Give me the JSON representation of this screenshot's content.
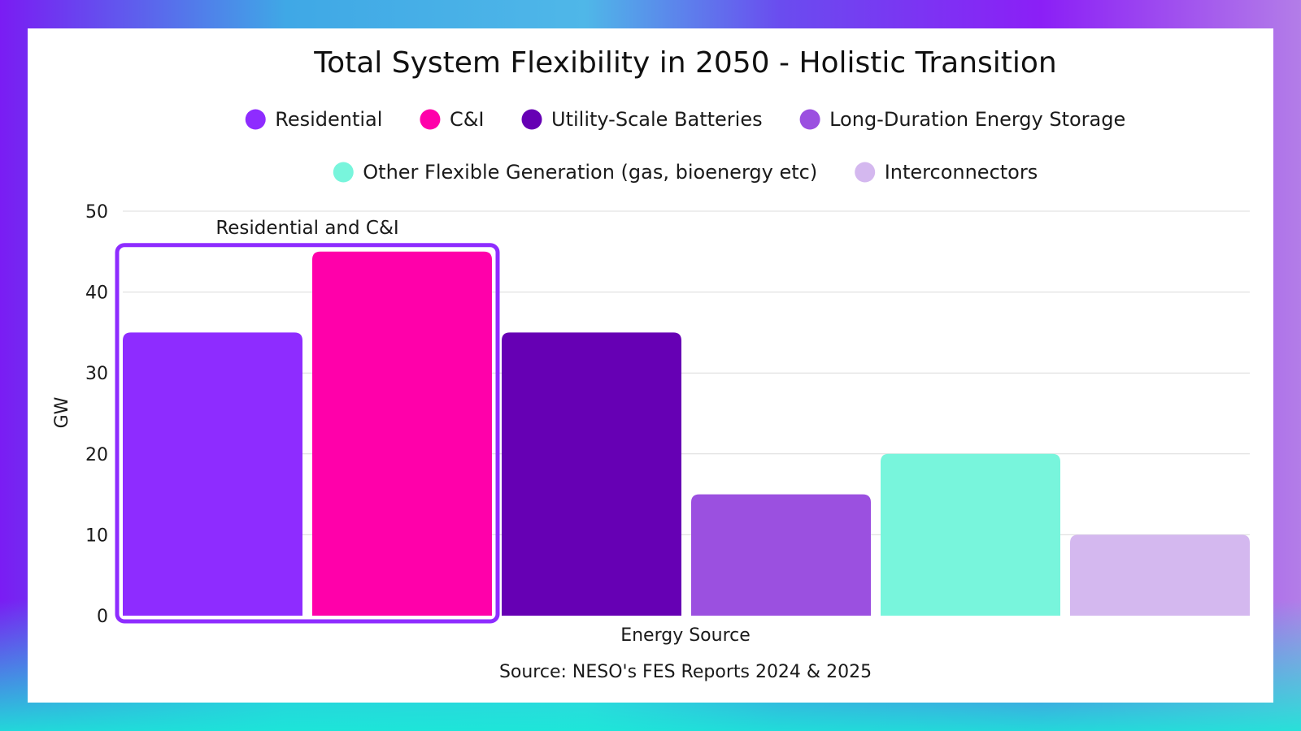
{
  "chart_data": {
    "type": "bar",
    "title": "Total System Flexibility in 2050 - Holistic Transition",
    "xlabel": "Energy Source",
    "ylabel": "GW",
    "ylim": [
      0,
      50
    ],
    "yticks": [
      0,
      10,
      20,
      30,
      40,
      50
    ],
    "grid": true,
    "legend_placement": "top-center",
    "categories": [
      "Residential",
      "C&I",
      "Utility-Scale Batteries",
      "Long-Duration Energy Storage",
      "Other Flexible Generation (gas, bioenergy etc)",
      "Interconnectors"
    ],
    "values": [
      35,
      45,
      35,
      15,
      20,
      10
    ],
    "colors": [
      "#8e2cff",
      "#ff00aa",
      "#6600b4",
      "#9b50e0",
      "#78f5dc",
      "#d4b8ef"
    ],
    "annotations": [
      {
        "text": "Residential and C&I",
        "groups": [
          "Residential",
          "C&I"
        ],
        "outline_color": "#8e2cff"
      }
    ],
    "source": "Source: NESO's FES Reports 2024 & 2025"
  }
}
